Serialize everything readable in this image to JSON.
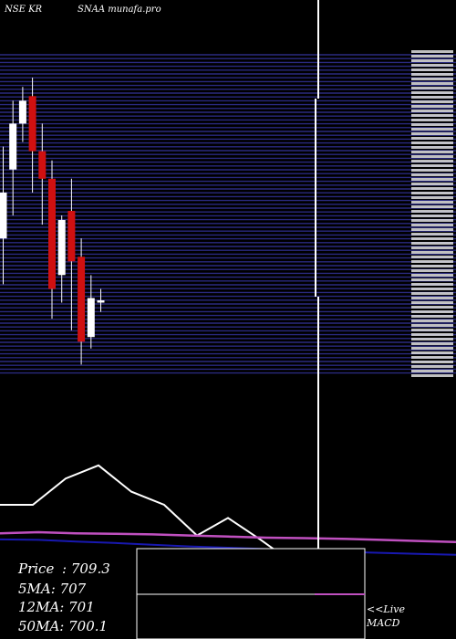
{
  "header": {
    "exchange_symbol": "NSE KR",
    "site": "SNAA munafa.pro"
  },
  "info": {
    "price_label": "Price",
    "price_value": ": 709.3",
    "ma5_label": "5MA",
    "ma5_value": ": 707",
    "ma12_label": "12MA",
    "ma12_value": ": 701",
    "ma50_label": "50MA",
    "ma50_value": ": 700.1"
  },
  "live_label": "<<Live",
  "macd_label": "MACD",
  "colors": {
    "background": "#000000",
    "price_grid": "#2a2a80",
    "up_candle": "#ffffff",
    "down_candle": "#d01010",
    "ma_short": "#ffffff",
    "ma_long": "#c050c0",
    "ma_blue": "#1818b0"
  },
  "chart_data": {
    "type": "candlestick",
    "candles": [
      {
        "open": 716,
        "high": 720,
        "low": 714,
        "close": 718
      },
      {
        "open": 719,
        "high": 722,
        "low": 717,
        "close": 721
      },
      {
        "open": 721,
        "high": 722.6,
        "low": 720.2,
        "close": 722
      },
      {
        "open": 722.2,
        "high": 723,
        "low": 718,
        "close": 719.8
      },
      {
        "open": 719.8,
        "high": 721,
        "low": 716.6,
        "close": 718.6
      },
      {
        "open": 718.6,
        "high": 719.4,
        "low": 712.5,
        "close": 713.8
      },
      {
        "open": 714.4,
        "high": 717,
        "low": 713.2,
        "close": 716.8
      },
      {
        "open": 717.2,
        "high": 718.6,
        "low": 712,
        "close": 715
      },
      {
        "open": 715.2,
        "high": 716,
        "low": 710.5,
        "close": 711.5
      },
      {
        "open": 711.7,
        "high": 714.4,
        "low": 711.2,
        "close": 713.4
      },
      {
        "open": 713.2,
        "high": 713.8,
        "low": 712.8,
        "close": 713.3
      }
    ],
    "ma_panel": {
      "short_ma": [
        680,
        680,
        692,
        698,
        686,
        680,
        666,
        674,
        664,
        658,
        656,
        656
      ],
      "long_ma": [
        667,
        667.5,
        667,
        666.8,
        666.5,
        666,
        665.5,
        665,
        664.8,
        664.5,
        664,
        663.5,
        663
      ],
      "blue_ma": [
        664.2,
        664,
        663.2,
        662.6,
        661.8,
        661,
        660.4,
        659.8,
        659.2,
        658.6,
        658.1,
        657.6,
        657.2
      ]
    }
  }
}
